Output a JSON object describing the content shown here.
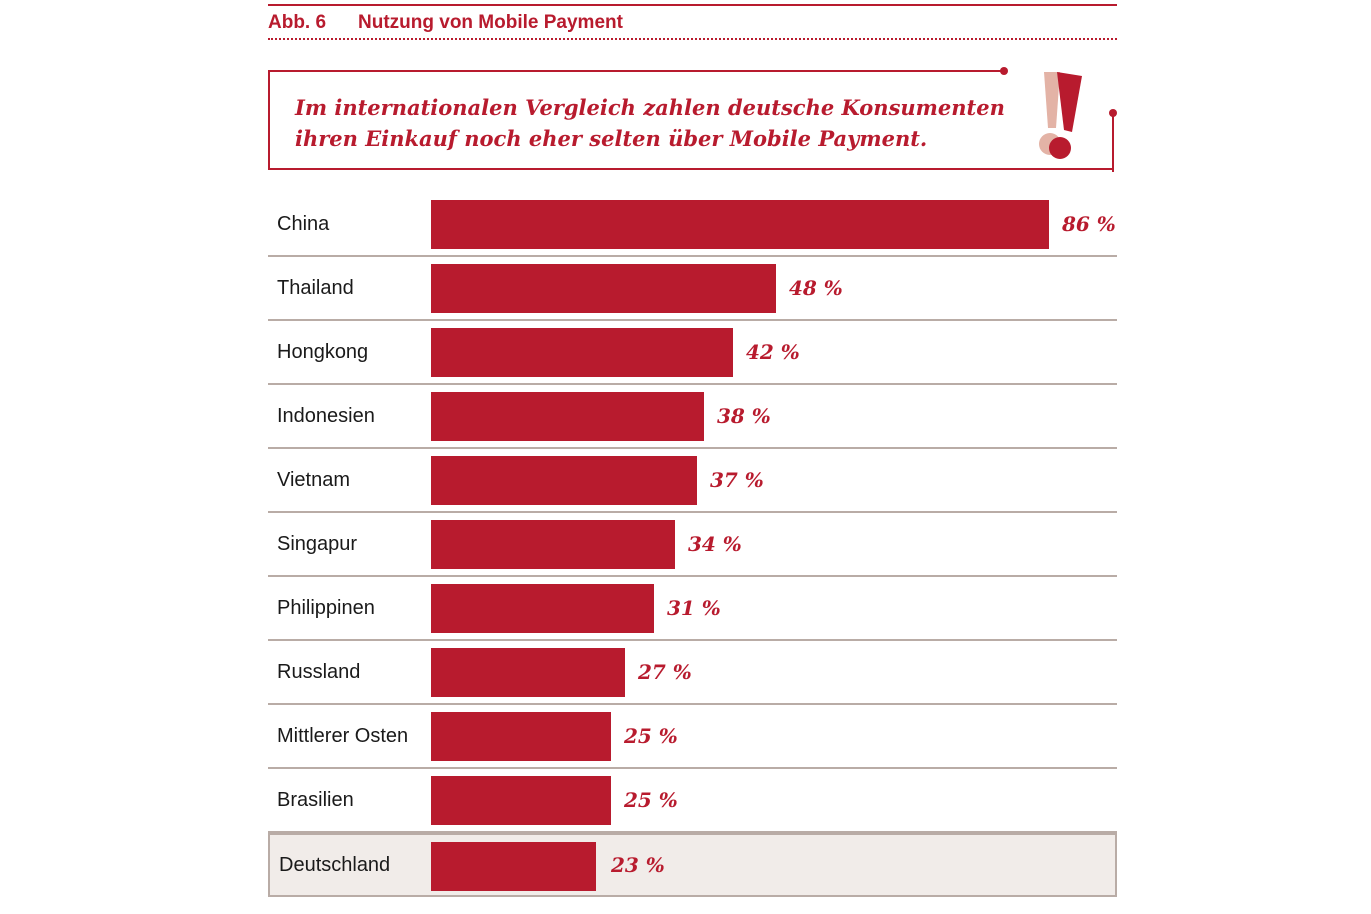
{
  "figure": {
    "number": "Abb. 6",
    "title": "Nutzung von Mobile Payment"
  },
  "callout": {
    "line1": "Im internationalen Vergleich zahlen deutsche Konsumenten",
    "line2": "ihren Einkauf noch eher selten über Mobile Payment.",
    "icon": "exclamation-icon"
  },
  "colors": {
    "accent": "#b81b2e",
    "highlight_row": "#f1ece9",
    "divider": "#b9aca6"
  },
  "chart_data": {
    "type": "bar",
    "orientation": "horizontal",
    "categories": [
      "China",
      "Thailand",
      "Hongkong",
      "Indonesien",
      "Vietnam",
      "Singapur",
      "Philippinen",
      "Russland",
      "Mittlerer Osten",
      "Brasilien",
      "Deutschland"
    ],
    "values": [
      86,
      48,
      42,
      38,
      37,
      34,
      31,
      27,
      25,
      25,
      23
    ],
    "value_labels": [
      "86 %",
      "48 %",
      "42 %",
      "38 %",
      "37 %",
      "34 %",
      "31 %",
      "27 %",
      "25 %",
      "25 %",
      "23 %"
    ],
    "highlighted_category": "Deutschland",
    "xlim": [
      0,
      86
    ],
    "grid": false
  }
}
